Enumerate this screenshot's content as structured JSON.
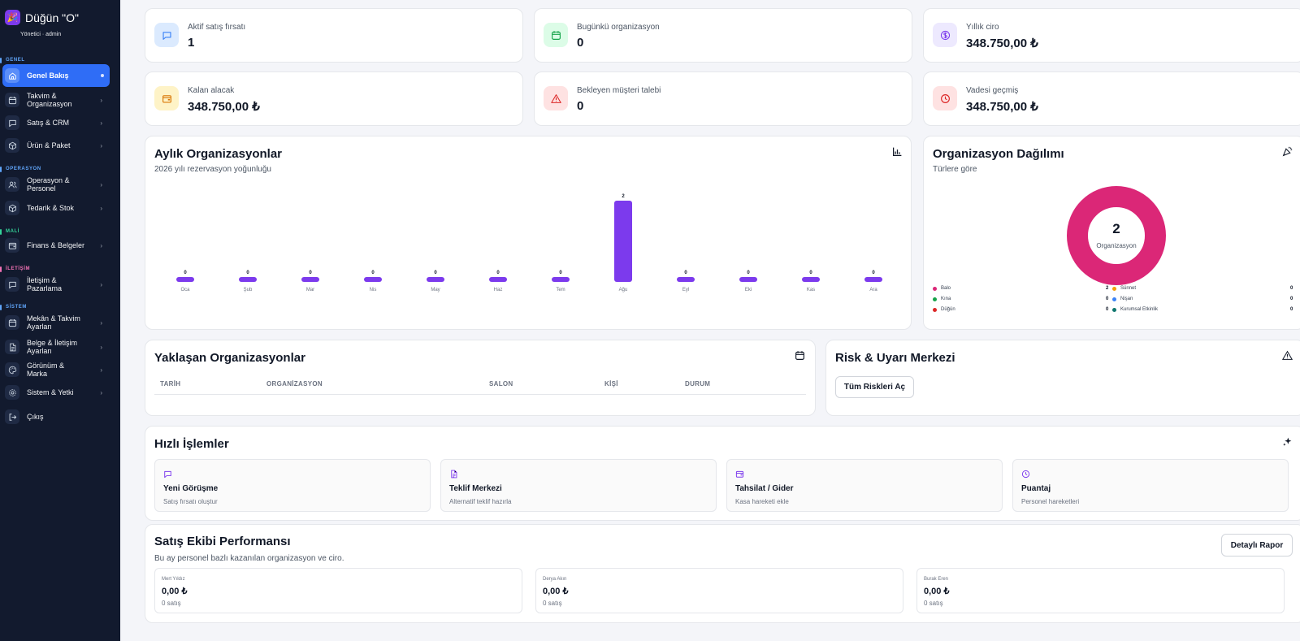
{
  "brand": {
    "name": "Düğün \"O\"",
    "subtitle": "Yönetici · admin",
    "color": "#7c3aed"
  },
  "sidebar": {
    "sections": [
      {
        "label": "GENEL",
        "color": "#60a5fa"
      },
      {
        "label": "OPERASYON",
        "color": "#60a5fa"
      },
      {
        "label": "MALİ",
        "color": "#34d399"
      },
      {
        "label": "İLETİŞİM",
        "color": "#f472b6"
      },
      {
        "label": "SİSTEM",
        "color": "#60a5fa"
      }
    ],
    "items": [
      {
        "label": "Genel Bakış",
        "icon": "home-icon",
        "active": true
      },
      {
        "label": "Takvim & Organizasyon",
        "icon": "calendar-icon"
      },
      {
        "label": "Satış & CRM",
        "icon": "chat-icon"
      },
      {
        "label": "Ürün & Paket",
        "icon": "box-icon"
      },
      {
        "label": "Operasyon & Personel",
        "icon": "users-icon"
      },
      {
        "label": "Tedarik & Stok",
        "icon": "box-icon"
      },
      {
        "label": "Finans & Belgeler",
        "icon": "wallet-icon"
      },
      {
        "label": "İletişim & Pazarlama",
        "icon": "chat-icon"
      },
      {
        "label": "Mekân & Takvim Ayarları",
        "icon": "calendar-icon"
      },
      {
        "label": "Belge & İletişim Ayarları",
        "icon": "document-icon"
      },
      {
        "label": "Görünüm & Marka",
        "icon": "palette-icon"
      },
      {
        "label": "Sistem & Yetki",
        "icon": "gear-icon"
      },
      {
        "label": "Çıkış",
        "icon": "logout-icon"
      }
    ]
  },
  "stats": [
    {
      "label": "Aktif satış fırsatı",
      "value": "1",
      "icon": "chat-icon",
      "bg": "#dbeafe",
      "fg": "#3b82f6"
    },
    {
      "label": "Bugünkü organizasyon",
      "value": "0",
      "icon": "calendar-icon",
      "bg": "#dcfce7",
      "fg": "#16a34a"
    },
    {
      "label": "Yıllık ciro",
      "value": "348.750,00 ₺",
      "icon": "dollar-icon",
      "bg": "#ede9fe",
      "fg": "#7c3aed"
    },
    {
      "label": "Kalan alacak",
      "value": "348.750,00 ₺",
      "icon": "wallet-icon",
      "bg": "#fef3c7",
      "fg": "#d97706"
    },
    {
      "label": "Bekleyen müşteri talebi",
      "value": "0",
      "icon": "warning-icon",
      "bg": "#fee2e2",
      "fg": "#dc2626"
    },
    {
      "label": "Vadesi geçmiş",
      "value": "348.750,00 ₺",
      "icon": "clock-icon",
      "bg": "#fee2e2",
      "fg": "#dc2626"
    }
  ],
  "monthly": {
    "title": "Aylık Organizasyonlar",
    "subtitle": "2026 yılı rezervasyon yoğunluğu",
    "icon": "bar-chart-icon"
  },
  "distribution": {
    "title": "Organizasyon Dağılımı",
    "subtitle": "Türlere göre",
    "icon": "party-icon",
    "total": "2",
    "total_label": "Organizasyon",
    "legend": [
      {
        "name": "Balo",
        "count": "2",
        "color": "#db2777"
      },
      {
        "name": "Sünnet",
        "count": "0",
        "color": "#f59e0b"
      },
      {
        "name": "Kına",
        "count": "0",
        "color": "#16a34a"
      },
      {
        "name": "Nişan",
        "count": "0",
        "color": "#3b82f6"
      },
      {
        "name": "Düğün",
        "count": "0",
        "color": "#dc2626"
      },
      {
        "name": "Kurumsal Etkinlik",
        "count": "0",
        "color": "#0f766e"
      }
    ]
  },
  "upcoming": {
    "title": "Yaklaşan Organizasyonlar",
    "icon": "calendar-icon",
    "columns": [
      "TARİH",
      "ORGANİZASYON",
      "SALON",
      "KİŞİ",
      "DURUM"
    ]
  },
  "risk": {
    "title": "Risk & Uyarı Merkezi",
    "icon": "warning-icon",
    "button": "Tüm Riskleri Aç"
  },
  "quick": {
    "title": "Hızlı İşlemler",
    "icon": "sparkle-icon",
    "items": [
      {
        "title": "Yeni Görüşme",
        "subtitle": "Satış fırsatı oluştur",
        "icon": "chat-icon"
      },
      {
        "title": "Teklif Merkezi",
        "subtitle": "Alternatif teklif hazırla",
        "icon": "document-icon"
      },
      {
        "title": "Tahsilat / Gider",
        "subtitle": "Kasa hareketi ekle",
        "icon": "wallet-icon"
      },
      {
        "title": "Puantaj",
        "subtitle": "Personel hareketleri",
        "icon": "clock-icon"
      }
    ]
  },
  "team": {
    "title": "Satış Ekibi Performansı",
    "subtitle": "Bu ay personel bazlı kazanılan organizasyon ve ciro.",
    "button": "Detaylı Rapor",
    "members": [
      {
        "name": "Mert Yıldız",
        "amount": "0,00 ₺",
        "sales": "0 satış"
      },
      {
        "name": "Derya Akın",
        "amount": "0,00 ₺",
        "sales": "0 satış"
      },
      {
        "name": "Burak Eren",
        "amount": "0,00 ₺",
        "sales": "0 satış"
      }
    ]
  },
  "chart_data": {
    "type": "bar",
    "categories": [
      "Oca",
      "Şub",
      "Mar",
      "Nis",
      "May",
      "Haz",
      "Tem",
      "Ağu",
      "Eyl",
      "Eki",
      "Kas",
      "Ara"
    ],
    "values": [
      0,
      0,
      0,
      0,
      0,
      0,
      0,
      2,
      0,
      0,
      0,
      0
    ],
    "ylim": [
      0,
      2
    ],
    "grid": false,
    "color": "#7c3aed"
  }
}
